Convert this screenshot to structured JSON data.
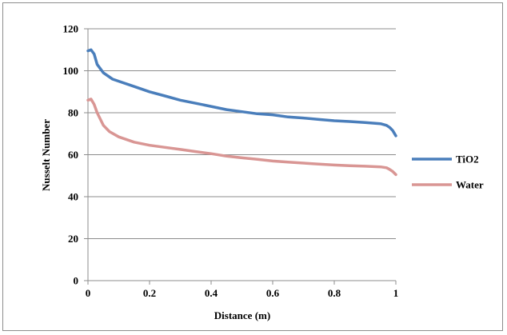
{
  "chart_data": {
    "type": "line",
    "title": "",
    "xlabel": "Distance (m)",
    "ylabel": "Nusselt Number",
    "xlim": [
      0,
      1
    ],
    "ylim": [
      0,
      120
    ],
    "x_ticks": [
      "0",
      "0.2",
      "0.4",
      "0.6",
      "0.8",
      "1"
    ],
    "y_ticks": [
      "0",
      "20",
      "40",
      "60",
      "80",
      "100",
      "120"
    ],
    "grid": "horizontal",
    "legend_position": "right",
    "series": [
      {
        "name": "TiO2",
        "color": "#4a7ebb",
        "points": [
          [
            0,
            109.5
          ],
          [
            0.01,
            110
          ],
          [
            0.02,
            108
          ],
          [
            0.03,
            103
          ],
          [
            0.05,
            99
          ],
          [
            0.08,
            96
          ],
          [
            0.1,
            95
          ],
          [
            0.15,
            92.5
          ],
          [
            0.2,
            90
          ],
          [
            0.25,
            88
          ],
          [
            0.3,
            86
          ],
          [
            0.35,
            84.5
          ],
          [
            0.4,
            83
          ],
          [
            0.45,
            81.5
          ],
          [
            0.5,
            80.5
          ],
          [
            0.55,
            79.5
          ],
          [
            0.6,
            79
          ],
          [
            0.65,
            78
          ],
          [
            0.7,
            77.5
          ],
          [
            0.75,
            76.8
          ],
          [
            0.8,
            76.2
          ],
          [
            0.85,
            75.8
          ],
          [
            0.9,
            75.3
          ],
          [
            0.95,
            74.8
          ],
          [
            0.97,
            74
          ],
          [
            0.98,
            73
          ],
          [
            0.99,
            71.5
          ],
          [
            1.0,
            69
          ]
        ]
      },
      {
        "name": "Water",
        "color": "#d99694",
        "points": [
          [
            0,
            86
          ],
          [
            0.01,
            86.5
          ],
          [
            0.02,
            84
          ],
          [
            0.03,
            80
          ],
          [
            0.05,
            74
          ],
          [
            0.07,
            71
          ],
          [
            0.1,
            68.5
          ],
          [
            0.15,
            66
          ],
          [
            0.2,
            64.5
          ],
          [
            0.25,
            63.5
          ],
          [
            0.3,
            62.5
          ],
          [
            0.35,
            61.5
          ],
          [
            0.4,
            60.5
          ],
          [
            0.45,
            59.3
          ],
          [
            0.5,
            58.5
          ],
          [
            0.55,
            57.8
          ],
          [
            0.6,
            57
          ],
          [
            0.65,
            56.5
          ],
          [
            0.7,
            56
          ],
          [
            0.75,
            55.5
          ],
          [
            0.8,
            55.1
          ],
          [
            0.85,
            54.8
          ],
          [
            0.9,
            54.5
          ],
          [
            0.95,
            54.2
          ],
          [
            0.97,
            53.8
          ],
          [
            0.98,
            53
          ],
          [
            0.99,
            52
          ],
          [
            1.0,
            50.5
          ]
        ]
      }
    ]
  }
}
